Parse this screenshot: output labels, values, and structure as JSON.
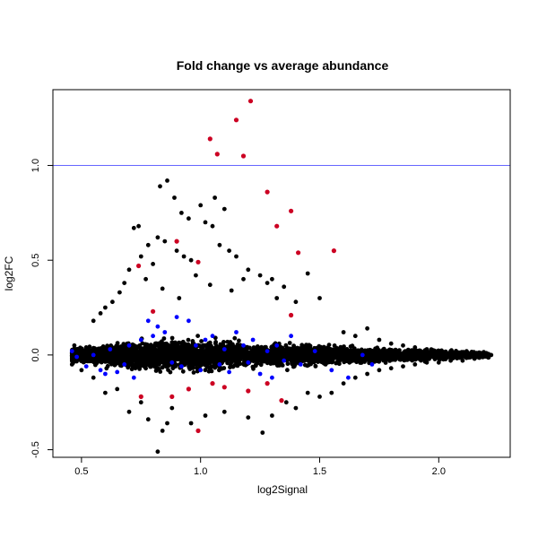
{
  "chart_data": {
    "type": "scatter",
    "title": "Fold change vs average abundance",
    "xlabel": "log2Signal",
    "ylabel": "log2FC",
    "xlim": [
      0.38,
      2.3
    ],
    "ylim": [
      -0.54,
      1.4
    ],
    "x_ticks": [
      {
        "value": 0.5,
        "label": "0.5"
      },
      {
        "value": 1.0,
        "label": "1.0"
      },
      {
        "value": 1.5,
        "label": "1.5"
      },
      {
        "value": 2.0,
        "label": "2.0"
      }
    ],
    "y_ticks": [
      {
        "value": -0.5,
        "label": "-0.5"
      },
      {
        "value": 0.0,
        "label": "0.0"
      },
      {
        "value": 0.5,
        "label": "0.5"
      },
      {
        "value": 1.0,
        "label": "1.0"
      }
    ],
    "reference_line": {
      "y": 1.0,
      "color": "#6666ff"
    },
    "grid": false,
    "legend": "none",
    "colors": {
      "points": "#000000",
      "blue": "#0000ff",
      "red": "#cc0022",
      "reference": "#6666ff"
    },
    "series": [
      {
        "color": "#000000",
        "points": [
          [
            0.86,
            0.92
          ],
          [
            0.83,
            0.89
          ],
          [
            0.89,
            0.83
          ],
          [
            0.92,
            0.75
          ],
          [
            0.95,
            0.72
          ],
          [
            1.06,
            0.83
          ],
          [
            1.02,
            0.7
          ],
          [
            1.05,
            0.68
          ],
          [
            1.0,
            0.79
          ],
          [
            1.1,
            0.77
          ],
          [
            0.72,
            0.67
          ],
          [
            0.74,
            0.68
          ],
          [
            0.78,
            0.58
          ],
          [
            0.82,
            0.62
          ],
          [
            0.85,
            0.6
          ],
          [
            0.9,
            0.55
          ],
          [
            0.93,
            0.52
          ],
          [
            0.96,
            0.5
          ],
          [
            1.08,
            0.58
          ],
          [
            1.12,
            0.55
          ],
          [
            1.15,
            0.52
          ],
          [
            1.2,
            0.45
          ],
          [
            1.25,
            0.42
          ],
          [
            1.3,
            0.4
          ],
          [
            1.35,
            0.36
          ],
          [
            1.45,
            0.43
          ],
          [
            1.5,
            0.3
          ],
          [
            1.4,
            0.28
          ],
          [
            1.32,
            0.3
          ],
          [
            0.7,
            0.45
          ],
          [
            0.75,
            0.52
          ],
          [
            0.8,
            0.48
          ],
          [
            0.66,
            0.33
          ],
          [
            0.68,
            0.38
          ],
          [
            0.6,
            0.25
          ],
          [
            0.63,
            0.28
          ],
          [
            0.55,
            0.18
          ],
          [
            0.58,
            0.22
          ],
          [
            1.28,
            0.38
          ],
          [
            1.18,
            0.4
          ],
          [
            1.04,
            0.37
          ],
          [
            0.98,
            0.42
          ],
          [
            0.77,
            0.4
          ],
          [
            0.84,
            0.35
          ],
          [
            0.91,
            0.3
          ],
          [
            1.13,
            0.34
          ],
          [
            1.6,
            0.12
          ],
          [
            1.65,
            0.1
          ],
          [
            1.7,
            0.14
          ],
          [
            1.75,
            0.08
          ],
          [
            1.8,
            0.06
          ],
          [
            1.85,
            0.05
          ],
          [
            1.9,
            0.04
          ],
          [
            1.95,
            0.03
          ],
          [
            2.0,
            0.02
          ],
          [
            2.05,
            0.02
          ],
          [
            2.1,
            0.01
          ],
          [
            2.15,
            0.0
          ],
          [
            2.2,
            0.01
          ],
          [
            2.22,
            0.0
          ],
          [
            1.6,
            -0.15
          ],
          [
            1.65,
            -0.12
          ],
          [
            1.7,
            -0.1
          ],
          [
            1.75,
            -0.08
          ],
          [
            1.8,
            -0.07
          ],
          [
            1.85,
            -0.06
          ],
          [
            1.9,
            -0.05
          ],
          [
            1.95,
            -0.04
          ],
          [
            2.0,
            -0.04
          ],
          [
            2.05,
            -0.03
          ],
          [
            2.1,
            -0.03
          ],
          [
            2.15,
            -0.02
          ],
          [
            0.82,
            -0.51
          ],
          [
            0.84,
            -0.4
          ],
          [
            0.86,
            -0.36
          ],
          [
            0.78,
            -0.34
          ],
          [
            0.96,
            -0.36
          ],
          [
            1.02,
            -0.32
          ],
          [
            0.88,
            -0.28
          ],
          [
            0.7,
            -0.3
          ],
          [
            0.75,
            -0.25
          ],
          [
            1.1,
            -0.3
          ],
          [
            1.2,
            -0.33
          ],
          [
            1.26,
            -0.41
          ],
          [
            1.3,
            -0.32
          ],
          [
            1.36,
            -0.25
          ],
          [
            1.4,
            -0.28
          ],
          [
            1.45,
            -0.2
          ],
          [
            1.5,
            -0.22
          ],
          [
            1.55,
            -0.2
          ],
          [
            0.6,
            -0.2
          ],
          [
            0.65,
            -0.18
          ],
          [
            0.55,
            -0.12
          ],
          [
            0.5,
            -0.08
          ],
          [
            0.46,
            -0.05
          ],
          [
            0.47,
            0.05
          ]
        ]
      },
      {
        "color": "#0000ff",
        "points": [
          [
            0.46,
            0.02
          ],
          [
            0.48,
            -0.01
          ],
          [
            0.52,
            -0.06
          ],
          [
            0.55,
            0.0
          ],
          [
            0.58,
            -0.08
          ],
          [
            0.6,
            -0.1
          ],
          [
            0.62,
            0.03
          ],
          [
            0.65,
            -0.09
          ],
          [
            0.68,
            -0.05
          ],
          [
            0.7,
            0.05
          ],
          [
            0.72,
            -0.12
          ],
          [
            0.75,
            0.08
          ],
          [
            0.78,
            0.18
          ],
          [
            0.8,
            0.1
          ],
          [
            0.82,
            0.15
          ],
          [
            0.85,
            0.12
          ],
          [
            0.88,
            -0.04
          ],
          [
            0.9,
            0.2
          ],
          [
            0.92,
            -0.06
          ],
          [
            0.95,
            0.18
          ],
          [
            0.98,
            0.05
          ],
          [
            1.0,
            -0.08
          ],
          [
            1.02,
            0.08
          ],
          [
            1.05,
            0.1
          ],
          [
            1.08,
            -0.05
          ],
          [
            1.1,
            0.03
          ],
          [
            1.12,
            -0.09
          ],
          [
            1.15,
            0.12
          ],
          [
            1.18,
            0.05
          ],
          [
            1.2,
            -0.04
          ],
          [
            1.22,
            0.08
          ],
          [
            1.25,
            -0.1
          ],
          [
            1.28,
            0.02
          ],
          [
            1.3,
            -0.12
          ],
          [
            1.32,
            0.05
          ],
          [
            1.35,
            -0.03
          ],
          [
            1.38,
            0.1
          ],
          [
            1.42,
            -0.05
          ],
          [
            1.48,
            0.02
          ],
          [
            1.55,
            -0.08
          ],
          [
            1.62,
            -0.12
          ],
          [
            1.68,
            0.0
          ],
          [
            1.72,
            -0.05
          ]
        ]
      },
      {
        "color": "#cc0022",
        "points": [
          [
            1.21,
            1.34
          ],
          [
            1.15,
            1.24
          ],
          [
            1.04,
            1.14
          ],
          [
            1.07,
            1.06
          ],
          [
            1.18,
            1.05
          ],
          [
            1.28,
            0.86
          ],
          [
            1.38,
            0.76
          ],
          [
            1.32,
            0.68
          ],
          [
            1.56,
            0.55
          ],
          [
            1.41,
            0.54
          ],
          [
            0.9,
            0.6
          ],
          [
            0.99,
            0.49
          ],
          [
            0.74,
            0.47
          ],
          [
            0.8,
            0.23
          ],
          [
            1.38,
            0.21
          ],
          [
            0.99,
            -0.4
          ],
          [
            1.34,
            -0.24
          ],
          [
            1.2,
            -0.19
          ],
          [
            1.1,
            -0.17
          ],
          [
            0.88,
            -0.22
          ],
          [
            0.75,
            -0.22
          ],
          [
            1.05,
            -0.15
          ],
          [
            1.28,
            -0.15
          ],
          [
            0.95,
            -0.18
          ]
        ]
      }
    ]
  }
}
